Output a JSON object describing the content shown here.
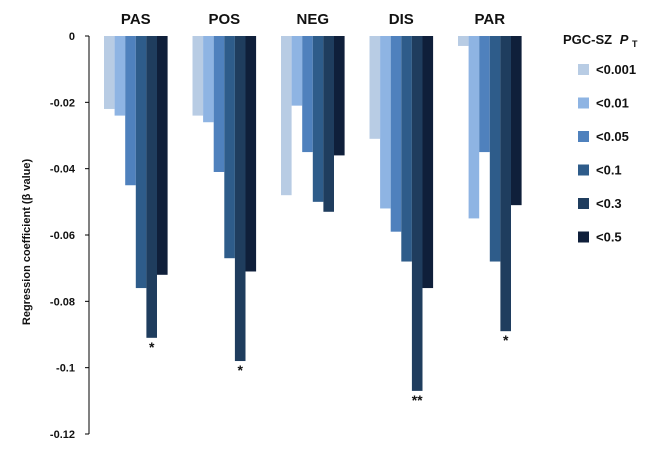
{
  "chart_data": {
    "type": "bar",
    "categories": [
      "PAS",
      "POS",
      "NEG",
      "DIS",
      "PAR"
    ],
    "ylabel": "Regression coefficient (β value)",
    "ylim": [
      -0.12,
      0
    ],
    "yticks": [
      0,
      -0.02,
      -0.04,
      -0.06,
      -0.08,
      -0.1,
      -0.12
    ],
    "ytick_labels": [
      "0",
      "-0.02",
      "-0.04",
      "-0.06",
      "-0.08",
      "-0.1",
      "-0.12"
    ],
    "grid": false,
    "legend": {
      "title": "PGC-SZ",
      "title_symbol": "P",
      "title_subscript": "T",
      "placement": "right"
    },
    "series": [
      {
        "name": "<0.001",
        "color": "#b8cce4",
        "values": [
          -0.022,
          -0.024,
          -0.048,
          -0.031,
          -0.003
        ]
      },
      {
        "name": "<0.01",
        "color": "#8eb4e3",
        "values": [
          -0.024,
          -0.026,
          -0.021,
          -0.052,
          -0.055
        ]
      },
      {
        "name": "<0.05",
        "color": "#4f81bd",
        "values": [
          -0.045,
          -0.041,
          -0.035,
          -0.059,
          -0.035
        ]
      },
      {
        "name": "<0.1",
        "color": "#2e5c8a",
        "values": [
          -0.076,
          -0.067,
          -0.05,
          -0.068,
          -0.068
        ]
      },
      {
        "name": "<0.3",
        "color": "#1f3d5e",
        "values": [
          -0.091,
          -0.098,
          -0.053,
          -0.107,
          -0.089
        ]
      },
      {
        "name": "<0.5",
        "color": "#0f1f3a",
        "values": [
          -0.072,
          -0.071,
          -0.036,
          -0.076,
          -0.051
        ]
      }
    ],
    "annotations": [
      {
        "category": "PAS",
        "series": "<0.3",
        "text": "*"
      },
      {
        "category": "POS",
        "series": "<0.3",
        "text": "*"
      },
      {
        "category": "DIS",
        "series": "<0.3",
        "text": "**"
      },
      {
        "category": "PAR",
        "series": "<0.3",
        "text": "*"
      }
    ]
  }
}
